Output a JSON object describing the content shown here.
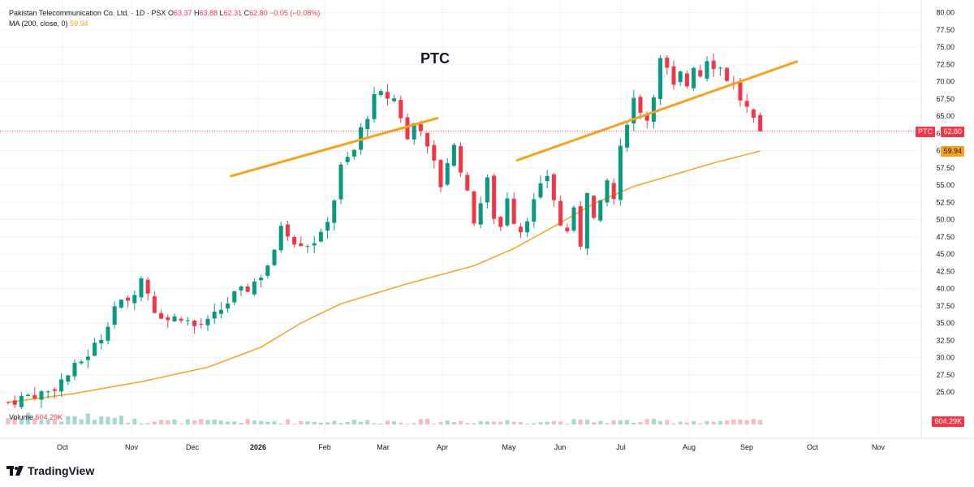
{
  "header": {
    "instrument": "Pakistan Telecommunication Co. Ltd. · 1D · PSX",
    "o_label": "O",
    "o_value": "63.37",
    "h_label": "H",
    "h_value": "63.88",
    "l_label": "L",
    "l_value": "62.31",
    "c_label": "C",
    "c_value": "62.80",
    "change": "−0.05 (−0.08%)",
    "ma_label": "MA (200, close, 0)",
    "ma_value": "59.94"
  },
  "volume": {
    "label": "Volume",
    "value": "604.29K"
  },
  "watermark": "PTC",
  "badges": {
    "symbol": "PTC",
    "last_price": "62.80",
    "ma_price": "59.94",
    "volume": "604.29K"
  },
  "branding": "TradingView",
  "colors": {
    "up": "#089981",
    "down": "#f23645",
    "ma": "#f7a21b",
    "trendline": "#f7a21b",
    "grid": "#f0f3fa"
  },
  "chart_data": {
    "type": "candlestick",
    "title": "PTC",
    "x_ticks": [
      "Oct",
      "Nov",
      "Dec",
      "2026",
      "Feb",
      "Mar",
      "Apr",
      "May",
      "Jun",
      "Jul",
      "Aug",
      "Sep",
      "Oct",
      "Nov"
    ],
    "y_ticks": [
      "80.00",
      "77.50",
      "75.00",
      "72.50",
      "70.00",
      "67.50",
      "65.00",
      "62.50",
      "60.00",
      "57.50",
      "55.00",
      "52.50",
      "50.00",
      "47.50",
      "45.00",
      "42.50",
      "40.00",
      "37.50",
      "35.00",
      "32.50",
      "30.00",
      "27.50",
      "25.00"
    ],
    "ylim": [
      22.5,
      80.0
    ],
    "last_close": 62.8,
    "ma200_last": 59.94,
    "price_path": [
      [
        0,
        23.5
      ],
      [
        3,
        24.5
      ],
      [
        6,
        25.0
      ],
      [
        9,
        27.5
      ],
      [
        12,
        30.5
      ],
      [
        14,
        33.0
      ],
      [
        16,
        37.5
      ],
      [
        18,
        38.0
      ],
      [
        20,
        41.5
      ],
      [
        21,
        39.5
      ],
      [
        22,
        37.0
      ],
      [
        24,
        35.5
      ],
      [
        26,
        36.0
      ],
      [
        28,
        34.5
      ],
      [
        30,
        35.0
      ],
      [
        32,
        37.0
      ],
      [
        34,
        39.0
      ],
      [
        36,
        40.0
      ],
      [
        38,
        42.0
      ],
      [
        40,
        45.0
      ],
      [
        41,
        49.5
      ],
      [
        43,
        47.0
      ],
      [
        45,
        46.5
      ],
      [
        47,
        47.5
      ],
      [
        49,
        53.0
      ],
      [
        50,
        57.5
      ],
      [
        52,
        60.0
      ],
      [
        53,
        63.0
      ],
      [
        55,
        67.5
      ],
      [
        56,
        68.0
      ],
      [
        58,
        67.5
      ],
      [
        59,
        65.0
      ],
      [
        60,
        61.5
      ],
      [
        61,
        64.0
      ],
      [
        62,
        63.5
      ],
      [
        63,
        60.0
      ],
      [
        64,
        58.0
      ],
      [
        65,
        55.0
      ],
      [
        66,
        58.5
      ],
      [
        67,
        60.5
      ],
      [
        68,
        57.5
      ],
      [
        69,
        53.5
      ],
      [
        70,
        50.0
      ],
      [
        71,
        52.5
      ],
      [
        72,
        55.5
      ],
      [
        73,
        50.5
      ],
      [
        74,
        49.0
      ],
      [
        75,
        53.5
      ],
      [
        76,
        50.0
      ],
      [
        77,
        48.5
      ],
      [
        79,
        52.5
      ],
      [
        81,
        56.5
      ],
      [
        82,
        53.0
      ],
      [
        83,
        49.0
      ],
      [
        84,
        48.5
      ],
      [
        85,
        51.0
      ],
      [
        86,
        46.5
      ],
      [
        87,
        54.5
      ],
      [
        88,
        50.0
      ],
      [
        89,
        52.0
      ],
      [
        90,
        55.5
      ],
      [
        91,
        53.0
      ],
      [
        92,
        60.0
      ],
      [
        93,
        64.5
      ],
      [
        94,
        67.5
      ],
      [
        95,
        66.0
      ],
      [
        96,
        64.5
      ],
      [
        97,
        68.5
      ],
      [
        98,
        73.0
      ],
      [
        99,
        71.5
      ],
      [
        100,
        69.0
      ],
      [
        101,
        71.0
      ],
      [
        102,
        69.5
      ],
      [
        103,
        72.5
      ],
      [
        104,
        71.0
      ],
      [
        105,
        73.5
      ],
      [
        106,
        72.5
      ],
      [
        107,
        72.0
      ],
      [
        108,
        70.5
      ],
      [
        109,
        69.5
      ],
      [
        110,
        67.5
      ],
      [
        111,
        66.0
      ],
      [
        112,
        64.0
      ],
      [
        113,
        62.8
      ]
    ],
    "ma200_path": [
      [
        0,
        23.5
      ],
      [
        10,
        24.8
      ],
      [
        20,
        26.5
      ],
      [
        30,
        28.6
      ],
      [
        38,
        31.5
      ],
      [
        44,
        35.0
      ],
      [
        50,
        37.8
      ],
      [
        60,
        40.7
      ],
      [
        70,
        43.3
      ],
      [
        76,
        45.8
      ],
      [
        82,
        49.0
      ],
      [
        88,
        52.3
      ],
      [
        94,
        54.8
      ],
      [
        100,
        56.5
      ],
      [
        106,
        58.2
      ],
      [
        113,
        59.94
      ]
    ],
    "trendlines": [
      {
        "from": [
          33.5,
          56.3
        ],
        "to": [
          64.5,
          64.7
        ]
      },
      {
        "from": [
          76.5,
          58.6
        ],
        "to": [
          118.5,
          72.9
        ]
      }
    ]
  }
}
